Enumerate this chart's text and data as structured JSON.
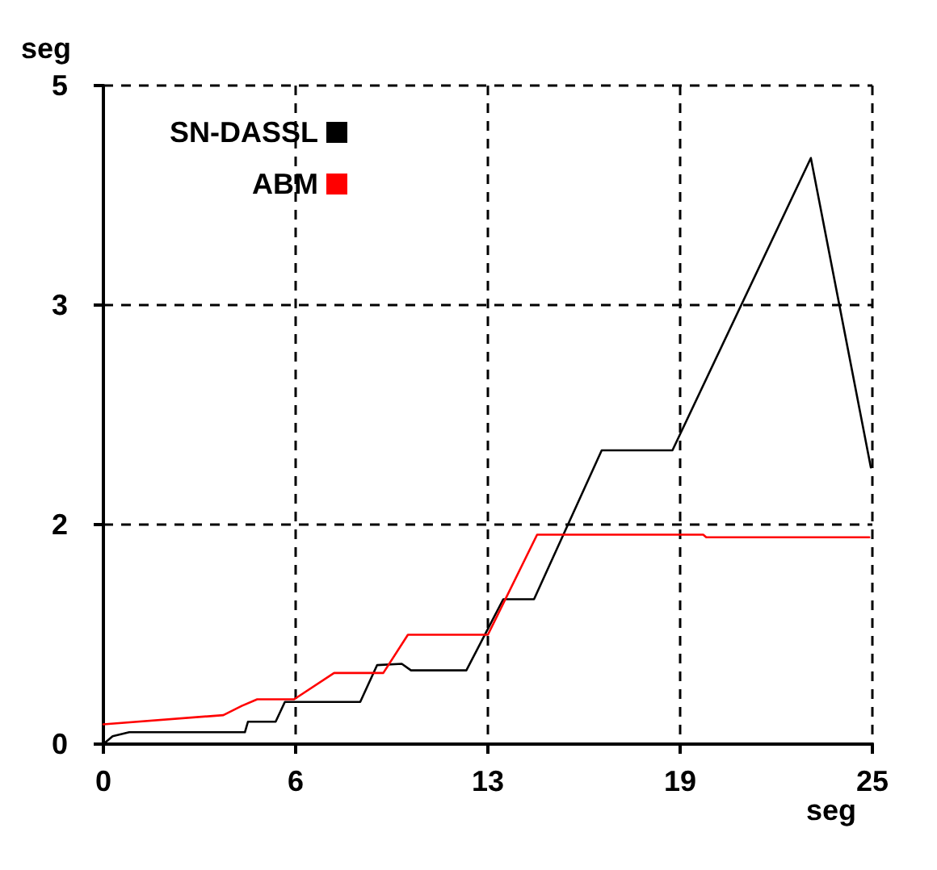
{
  "chart_data": {
    "type": "line",
    "xlabel": "seg",
    "ylabel": "seg",
    "x": [
      0,
      0.3,
      0.84,
      4.6,
      4.7,
      5.6,
      5.9,
      8.35,
      8.9,
      9.7,
      10.0,
      11.8,
      13.0,
      14.0,
      16.2,
      18.5,
      23.0,
      24.95
    ],
    "series": [
      {
        "name": "SN-DASSL",
        "color": "#000000",
        "values": [
          0,
          0.06,
          0.09,
          0.09,
          0.17,
          0.17,
          0.32,
          0.32,
          0.6,
          0.61,
          0.56,
          0.56,
          1.1,
          1.1,
          2.23,
          2.23,
          4.45,
          2.1
        ]
      },
      {
        "name": "ABM",
        "color": "#ff0000",
        "x": [
          0,
          3.9,
          4.5,
          5.0,
          6.2,
          7.5,
          9.1,
          9.9,
          12.5,
          14.1,
          19.5,
          19.6,
          24.9
        ],
        "values": [
          0.15,
          0.22,
          0.29,
          0.34,
          0.34,
          0.54,
          0.54,
          0.83,
          0.83,
          1.59,
          1.59,
          1.57,
          1.57
        ]
      }
    ],
    "xlim": [
      0,
      25
    ],
    "xticks": [
      0,
      {
        "value": 6.25,
        "label": "6"
      },
      {
        "value": 12.5,
        "label": "13"
      },
      {
        "value": 18.75,
        "label": "19"
      },
      25
    ],
    "ylim": [
      0,
      5
    ],
    "yticks": [
      0,
      {
        "value": 1.6667,
        "label": "2"
      },
      {
        "value": 3.3333,
        "label": "3"
      },
      5
    ],
    "grid": true,
    "legend": "top left",
    "marker": "none",
    "line_style": "solid"
  }
}
